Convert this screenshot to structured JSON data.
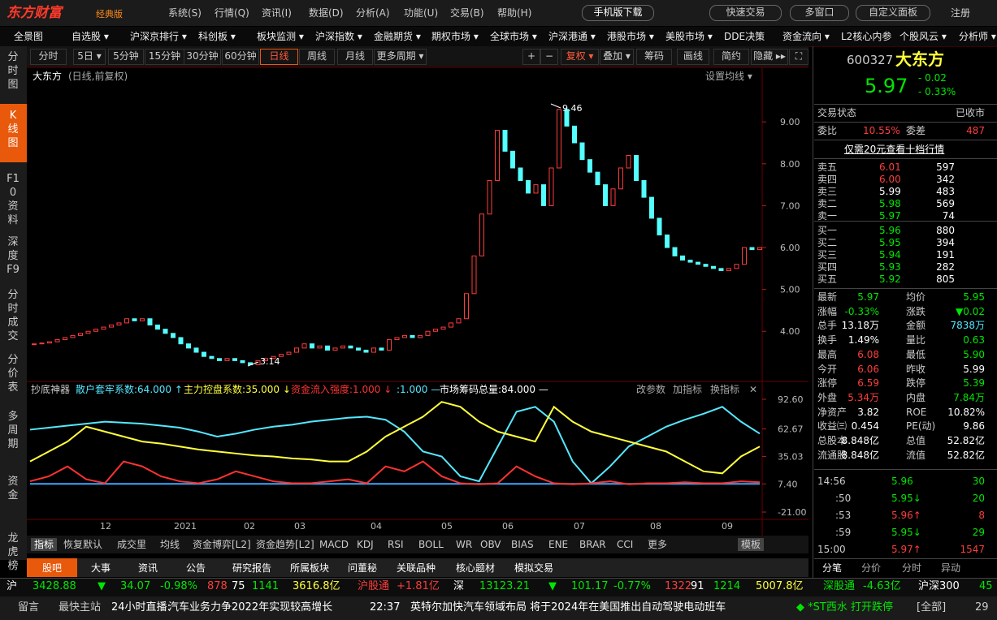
{
  "topbar": {
    "logo": "东方财富",
    "edition": "经典版",
    "menu": [
      "系统(S)",
      "行情(Q)",
      "资讯(I)",
      "数据(D)",
      "分析(A)",
      "功能(U)",
      "交易(B)",
      "帮助(H)"
    ],
    "buttons": [
      "手机版下载",
      "快速交易",
      "多窗口",
      "自定义面板"
    ],
    "register": "注册"
  },
  "navbar": [
    "全景图",
    "自选股 ▾",
    "沪深京排行 ▾",
    "科创板 ▾",
    "板块监测 ▾",
    "沪深指数 ▾",
    "金融期货 ▾",
    "期权市场 ▾",
    "全球市场 ▾",
    "沪深港通 ▾",
    "港股市场 ▾",
    "美股市场 ▾",
    "DDE决策",
    "资金流向 ▾",
    "L2核心内参",
    "个股风云 ▾",
    "分析师 ▾"
  ],
  "sidebar": [
    "分时图",
    "K线图",
    "F10资料",
    "深度F9",
    "分时成交",
    "分价表",
    "多周期",
    "资金",
    "龙虎榜"
  ],
  "toolbar": {
    "periods": [
      "分时",
      "5日 ▾",
      "5分钟",
      "15分钟",
      "30分钟",
      "60分钟",
      "日线",
      "周线",
      "月线",
      "更多周期 ▾"
    ],
    "tools": [
      "+",
      "−",
      "复权 ▾",
      "叠加 ▾",
      "筹码",
      "画线",
      "简约",
      "隐藏 ▸▸",
      "⛶"
    ]
  },
  "chart_data": {
    "type": "candlestick",
    "title": "大东方",
    "subtitle": "(日线,前复权)",
    "setting": "设置均线 ▾",
    "up_color": "#ff3c3c",
    "down_color": "#54ffff",
    "closes": [
      3.7,
      3.72,
      3.75,
      3.8,
      3.85,
      3.9,
      3.95,
      4.0,
      4.05,
      4.1,
      4.15,
      4.2,
      4.3,
      4.25,
      4.3,
      4.15,
      4.05,
      3.95,
      3.85,
      3.7,
      3.6,
      3.5,
      3.4,
      3.35,
      3.3,
      3.35,
      3.3,
      3.25,
      3.2,
      3.3,
      3.35,
      3.4,
      3.45,
      3.5,
      3.6,
      3.7,
      3.6,
      3.65,
      3.55,
      3.6,
      3.65,
      3.6,
      3.55,
      3.5,
      3.6,
      3.55,
      3.8,
      3.85,
      3.9,
      3.85,
      3.9,
      4.0,
      4.05,
      4.1,
      4.2,
      4.3,
      4.9,
      5.8,
      6.8,
      7.6,
      8.8,
      8.3,
      7.9,
      7.6,
      7.3,
      7.5,
      7.0,
      7.9,
      9.3,
      8.9,
      8.5,
      8.1,
      7.8,
      7.5,
      7.0,
      7.4,
      7.9,
      8.2,
      7.6,
      7.2,
      6.7,
      6.3,
      6.0,
      5.8,
      5.7,
      5.65,
      5.6,
      5.55,
      5.5,
      5.45,
      5.5,
      5.6,
      6.0,
      5.95,
      6.0
    ],
    "ylim": [
      2.9,
      10.07
    ],
    "yticks": [
      {
        "value": 4,
        "label": "4.00"
      },
      {
        "value": 5,
        "label": "5.00"
      },
      {
        "value": 6,
        "label": "6.00"
      },
      {
        "value": 7,
        "label": "7.00"
      },
      {
        "value": 8,
        "label": "8.00"
      },
      {
        "value": 9,
        "label": "9.00"
      }
    ],
    "annotations": [
      "9.46",
      "3.14"
    ],
    "x_labels": [
      "12",
      "2021",
      "02",
      "03",
      "04",
      "05",
      "06",
      "07",
      "08",
      "09"
    ],
    "indicator": {
      "name": "抄底神器",
      "ylim": [
        -21,
        92.6
      ],
      "yticks": [
        {
          "value": 92.6,
          "label": "92.60"
        },
        {
          "value": 62.67,
          "label": "62.67"
        },
        {
          "value": 35.03,
          "label": "35.03"
        },
        {
          "value": 7.4,
          "label": "7.40"
        },
        {
          "value": -21,
          "label": "-21.00"
        }
      ],
      "series": [
        {
          "name": "散户套牢系数:64.000 ↑",
          "color": "#54e8ff",
          "values": [
            62,
            64,
            66,
            68,
            70,
            69,
            68,
            66,
            64,
            60,
            55,
            58,
            62,
            65,
            67,
            70,
            72,
            74,
            75,
            72,
            60,
            40,
            35,
            15,
            10,
            45,
            80,
            85,
            70,
            30,
            8,
            25,
            45,
            55,
            65,
            72,
            78,
            85,
            70,
            58
          ]
        },
        {
          "name": "主力控盘系数:35.000 ↓",
          "color": "#ffff3c",
          "values": [
            30,
            40,
            50,
            65,
            60,
            55,
            50,
            48,
            45,
            42,
            40,
            38,
            36,
            35,
            33,
            32,
            30,
            30,
            40,
            55,
            65,
            75,
            90,
            85,
            70,
            60,
            55,
            50,
            85,
            70,
            60,
            55,
            50,
            45,
            40,
            30,
            20,
            18,
            35,
            45
          ]
        },
        {
          "name": "资金流入强度:1.000 ↓",
          "color": "#ff3232",
          "values": [
            10,
            15,
            25,
            12,
            8,
            30,
            25,
            15,
            10,
            8,
            12,
            20,
            15,
            10,
            8,
            8,
            10,
            12,
            8,
            25,
            20,
            30,
            15,
            8,
            7,
            8,
            25,
            15,
            8,
            7,
            8,
            10,
            7,
            8,
            8,
            9,
            8,
            8,
            10,
            9
          ]
        }
      ],
      "extra": [
        ":1.000 —",
        "市场筹码总量:84.000 —"
      ],
      "actions": [
        "改参数",
        "加指标",
        "换指标",
        "✕"
      ]
    }
  },
  "indicator_tabs": [
    "指标",
    "恢复默认",
    "成交里",
    "均线",
    "资金博弈[L2]",
    "资金趋势[L2]",
    "MACD",
    "KDJ",
    "RSI",
    "BOLL",
    "WR",
    "OBV",
    "BIAS",
    "ENE",
    "BRAR",
    "CCI",
    "更多",
    "模板"
  ],
  "info_tabs": [
    "股吧",
    "大事",
    "资讯",
    "公告",
    "研究报告",
    "所属板块",
    "问董秘",
    "关联品种",
    "核心题材",
    "模拟交易"
  ],
  "quote": {
    "code": "600327",
    "name": "大东方",
    "price": "5.97",
    "change": "- 0.02",
    "pct": "- 0.33%",
    "status": [
      "交易状态",
      "已收市"
    ],
    "weibi": [
      "委比",
      "10.55%",
      "委差",
      "487"
    ],
    "promo": "仅需20元查看十档行情",
    "asks": [
      [
        "卖五",
        "6.01",
        "597"
      ],
      [
        "卖四",
        "6.00",
        "342"
      ],
      [
        "卖三",
        "5.99",
        "483"
      ],
      [
        "卖二",
        "5.98",
        "569"
      ],
      [
        "卖一",
        "5.97",
        "74"
      ]
    ],
    "ask_colors": [
      "#ff3c3c",
      "#ff3c3c",
      "#ffffff",
      "#00e600",
      "#00e600"
    ],
    "bids": [
      [
        "买一",
        "5.96",
        "880"
      ],
      [
        "买二",
        "5.95",
        "394"
      ],
      [
        "买三",
        "5.94",
        "191"
      ],
      [
        "买四",
        "5.93",
        "282"
      ],
      [
        "买五",
        "5.92",
        "805"
      ]
    ],
    "stats": [
      [
        "最新",
        "5.97",
        "均价",
        "5.95"
      ],
      [
        "涨幅",
        "-0.33%",
        "涨跌",
        "▼0.02"
      ],
      [
        "总手",
        "13.18万",
        "金额",
        "7838万"
      ],
      [
        "换手",
        "1.49%",
        "量比",
        "0.63"
      ],
      [
        "最高",
        "6.08",
        "最低",
        "5.90"
      ],
      [
        "今开",
        "6.06",
        "昨收",
        "5.99"
      ],
      [
        "涨停",
        "6.59",
        "跌停",
        "5.39"
      ],
      [
        "外盘",
        "5.34万",
        "内盘",
        "7.84万"
      ],
      [
        "净资产",
        "3.82",
        "ROE",
        "10.82%"
      ],
      [
        "收益㈢",
        "0.454",
        "PE(动)",
        "9.86"
      ],
      [
        "总股本",
        "8.848亿",
        "总值",
        "52.82亿"
      ],
      [
        "流通股",
        "8.848亿",
        "流值",
        "52.82亿"
      ]
    ],
    "stat_colors": [
      [
        "#00e600",
        "#00e600"
      ],
      [
        "#00e600",
        "#00e600"
      ],
      [
        "#ffffff",
        "#54e8ff"
      ],
      [
        "#ffffff",
        "#00e600"
      ],
      [
        "#ff3c3c",
        "#00e600"
      ],
      [
        "#ff3c3c",
        "#ffffff"
      ],
      [
        "#ff3c3c",
        "#00e600"
      ],
      [
        "#ff3c3c",
        "#00e600"
      ],
      [
        "#ffffff",
        "#ffffff"
      ],
      [
        "#ffffff",
        "#ffffff"
      ],
      [
        "#ffffff",
        "#ffffff"
      ],
      [
        "#ffffff",
        "#ffffff"
      ]
    ],
    "ticks": [
      [
        "14:56",
        "5.96",
        "30"
      ],
      [
        ":50",
        "5.95↓",
        "20"
      ],
      [
        ":53",
        "5.96↑",
        "8"
      ],
      [
        ":59",
        "5.95↓",
        "29"
      ],
      [
        "15:00",
        "5.97↑",
        "1547"
      ]
    ],
    "tick_colors": [
      "#00e600",
      "#00e600",
      "#ff3c3c",
      "#00e600",
      "#ff3c3c"
    ],
    "tabs": [
      "分笔",
      "分价",
      "分时",
      "异动"
    ]
  },
  "statusbar": {
    "items": [
      "沪",
      "3428.88",
      "▼",
      "34.07",
      "-0.98%",
      "878",
      "75",
      "1141",
      "3616.8亿",
      "沪股通",
      "+1.81亿",
      "深",
      "13123.21",
      "▼",
      "101.17",
      "-0.77%",
      "1322",
      "91",
      "1214",
      "5007.8亿",
      "深股通",
      "-4.63亿",
      "沪深300",
      "45"
    ],
    "colors": [
      "#fff",
      "#00e600",
      "#00e600",
      "#00e600",
      "#00e600",
      "#ff3c3c",
      "#fff",
      "#00e600",
      "#ffff3c",
      "#ff3c3c",
      "#ff3c3c",
      "#fff",
      "#00e600",
      "#00e600",
      "#00e600",
      "#00e600",
      "#ff3c3c",
      "#fff",
      "#00e600",
      "#ffff3c",
      "#00e600",
      "#00e600",
      "#fff",
      "#00e600"
    ]
  },
  "footer": {
    "items": [
      "留言",
      "最快主站",
      "24小时直播:",
      "汽车业务力争2022年实现较高增长",
      "22:37",
      "英特尔加快汽车领域布局  将于2024年在美国推出自动驾驶电动班车",
      "◆ *ST西水  打开跌停",
      "[全部]",
      "29"
    ]
  }
}
